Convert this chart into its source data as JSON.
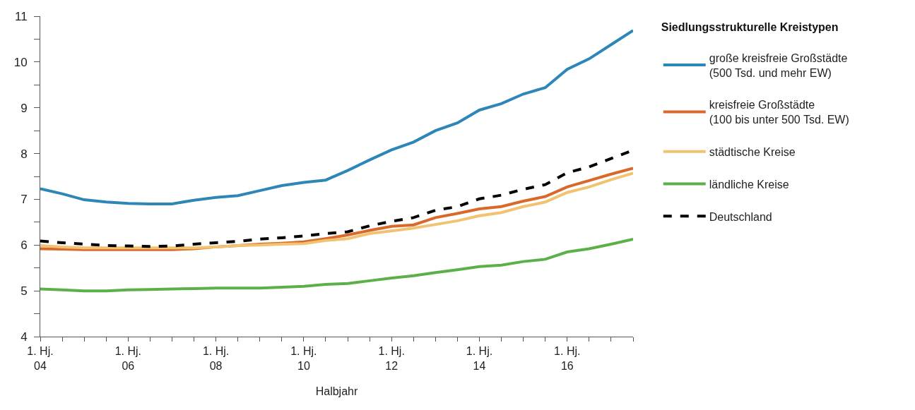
{
  "chart_data": {
    "type": "line",
    "xlabel": "Halbjahr",
    "legend_title": "Siedlungsstrukturelle Kreistypen",
    "categories": [
      "1. Hj.\n04",
      null,
      null,
      null,
      "1. Hj.\n06",
      null,
      null,
      null,
      "1. Hj.\n08",
      null,
      null,
      null,
      "1. Hj.\n10",
      null,
      null,
      null,
      "1. Hj.\n12",
      null,
      null,
      null,
      "1. Hj.\n14",
      null,
      null,
      null,
      "1. Hj.\n16",
      null,
      null,
      null
    ],
    "ylim": [
      4,
      11
    ],
    "yticks": [
      4,
      {
        "value": 4.5,
        "label": null
      },
      5,
      {
        "value": 5.5,
        "label": null
      },
      6,
      {
        "value": 6.5,
        "label": null
      },
      7,
      {
        "value": 7.5,
        "label": null
      },
      8,
      {
        "value": 8.5,
        "label": null
      },
      9,
      {
        "value": 9.5,
        "label": null
      },
      10,
      {
        "value": 10.5,
        "label": null
      },
      11
    ],
    "legend": "right",
    "marker": "none",
    "series": [
      {
        "name": "große kreisfreie Großstädte\n(500 Tsd. und mehr EW)",
        "color": "#2e86b8",
        "line_style": "solid",
        "values": [
          7.23,
          7.12,
          6.99,
          6.94,
          6.91,
          6.9,
          6.9,
          6.98,
          7.04,
          7.08,
          7.19,
          7.3,
          7.37,
          7.42,
          7.63,
          7.86,
          8.08,
          8.25,
          8.5,
          8.67,
          8.95,
          9.09,
          9.3,
          9.44,
          9.84,
          10.07,
          10.38,
          10.69
        ]
      },
      {
        "name": "kreisfreie Großstädte\n(100 bis unter 500 Tsd. EW)",
        "color": "#d9692a",
        "line_style": "solid",
        "values": [
          5.92,
          5.91,
          5.9,
          5.9,
          5.9,
          5.9,
          5.9,
          5.92,
          5.96,
          5.99,
          6.02,
          6.04,
          6.07,
          6.14,
          6.22,
          6.32,
          6.41,
          6.44,
          6.6,
          6.69,
          6.79,
          6.84,
          6.96,
          7.06,
          7.27,
          7.41,
          7.55,
          7.68
        ]
      },
      {
        "name": "städtische Kreise",
        "color": "#f0c272",
        "line_style": "solid",
        "values": [
          5.99,
          5.96,
          5.94,
          5.94,
          5.94,
          5.94,
          5.94,
          5.94,
          5.96,
          5.99,
          6.0,
          6.02,
          6.03,
          6.1,
          6.14,
          6.25,
          6.31,
          6.37,
          6.45,
          6.53,
          6.64,
          6.71,
          6.84,
          6.94,
          7.15,
          7.27,
          7.43,
          7.57
        ]
      },
      {
        "name": "ländliche Kreise",
        "color": "#5cb04a",
        "line_style": "solid",
        "values": [
          5.04,
          5.02,
          5.0,
          5.0,
          5.02,
          5.03,
          5.04,
          5.05,
          5.06,
          5.06,
          5.06,
          5.08,
          5.1,
          5.14,
          5.16,
          5.22,
          5.28,
          5.33,
          5.4,
          5.46,
          5.53,
          5.56,
          5.64,
          5.69,
          5.85,
          5.92,
          6.02,
          6.13
        ]
      },
      {
        "name": "Deutschland",
        "color": "#000000",
        "line_style": "dashed",
        "values": [
          6.09,
          6.05,
          6.02,
          5.99,
          5.98,
          5.97,
          5.98,
          6.02,
          6.05,
          6.08,
          6.13,
          6.16,
          6.2,
          6.25,
          6.29,
          6.42,
          6.52,
          6.6,
          6.76,
          6.84,
          7.01,
          7.09,
          7.22,
          7.32,
          7.58,
          7.71,
          7.89,
          8.07
        ]
      }
    ]
  }
}
